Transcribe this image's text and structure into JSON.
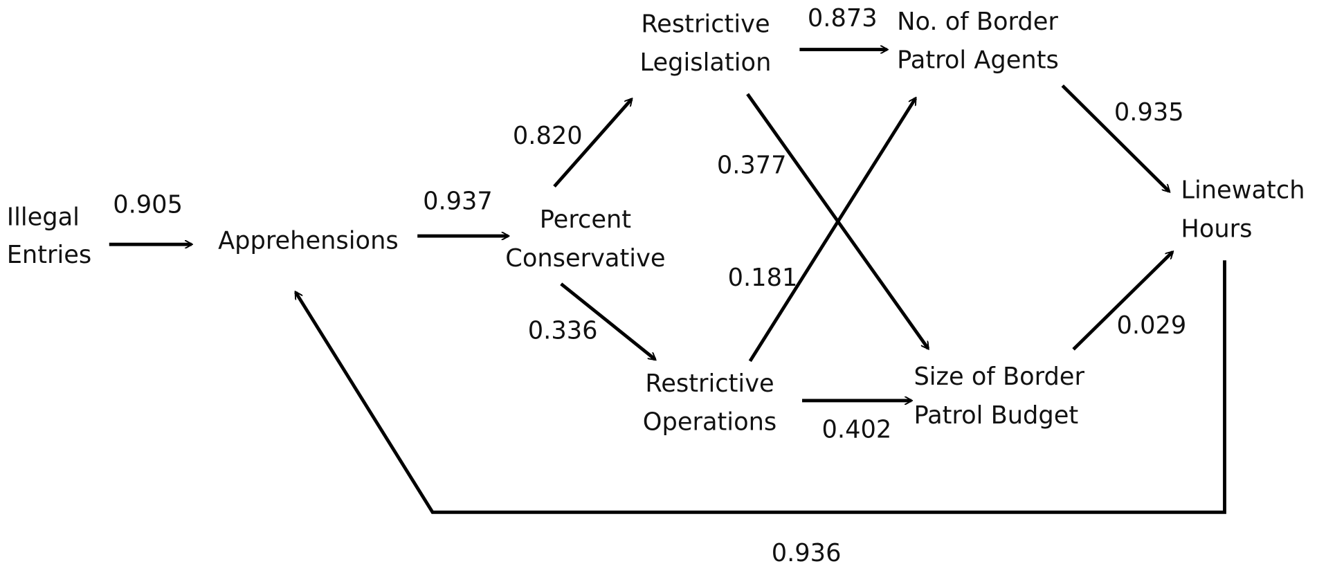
{
  "nodes": [
    {
      "lines": [
        "Illegal",
        "Entries"
      ]
    },
    {
      "lines": [
        "Apprehensions"
      ]
    },
    {
      "lines": [
        "Percent",
        "Conservative"
      ]
    },
    {
      "lines": [
        "Restrictive",
        "Legislation"
      ]
    },
    {
      "lines": [
        "Restrictive",
        "Operations"
      ]
    },
    {
      "lines": [
        "No. of Border",
        "Patrol Agents"
      ]
    },
    {
      "lines": [
        "Size of Border",
        "Patrol Budget"
      ]
    },
    {
      "lines": [
        "Linewatch",
        "Hours"
      ]
    }
  ],
  "edges": [
    {
      "label": "0.905"
    },
    {
      "label": "0.937"
    },
    {
      "label": "0.820"
    },
    {
      "label": "0.336"
    },
    {
      "label": "0.873"
    },
    {
      "label": "0.377"
    },
    {
      "label": "0.181"
    },
    {
      "label": "0.402"
    },
    {
      "label": "0.935"
    },
    {
      "label": "0.029"
    },
    {
      "label": "0.936"
    }
  ]
}
